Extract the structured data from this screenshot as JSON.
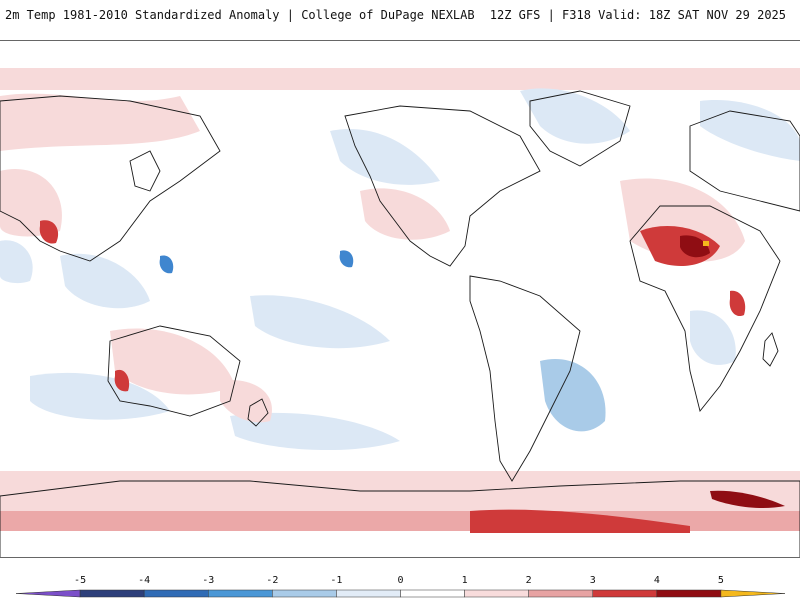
{
  "header": {
    "title": "2m Temp 1981-2010 Standardized Anomaly | College of DuPage NEXLAB",
    "run_info": "12Z GFS | F318 Valid: 18Z SAT NOV 29 2025"
  },
  "colorbar": {
    "min": -6,
    "max": 6,
    "ticks": [
      "-5",
      "-4",
      "-3",
      "-2",
      "-1",
      "0",
      "1",
      "2",
      "3",
      "4",
      "5"
    ],
    "colors": {
      "lt_-5": "#7b4fc9",
      "-5_-4": "#2d3f7a",
      "-4_-3": "#2f6bb5",
      "-3_-2": "#4a97d6",
      "-2_-1": "#a9cbe8",
      "-1_0": "#e2ecf7",
      "0_1": "#ffffff",
      "1_2": "#f8dcdc",
      "2_3": "#e7a3a3",
      "3_4": "#cf3a3a",
      "4_5": "#8f0d13",
      "gt_5": "#f4b81d"
    }
  },
  "map": {
    "background": "#ffffff",
    "ocean_color": "#ffffff",
    "coastline_color": "#1a1a1a",
    "pos_light": "#f7dada",
    "pos_med": "#eba8a8",
    "pos_strong": "#cf3a3a",
    "pos_extreme": "#8f0d13",
    "neg_light": "#dce8f5",
    "neg_med": "#a9cbe8",
    "neg_strong": "#3f86cf"
  }
}
